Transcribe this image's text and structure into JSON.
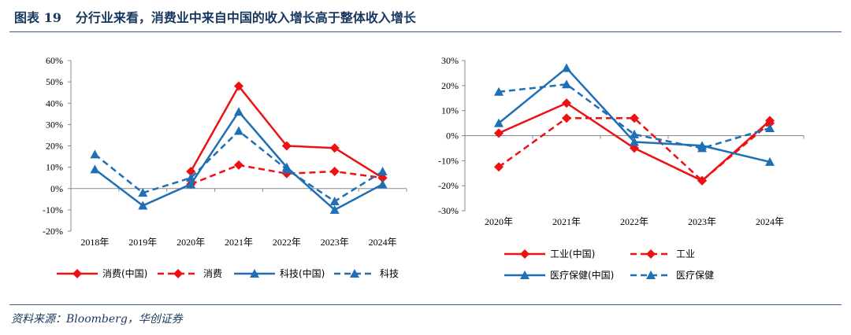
{
  "header": {
    "fig_label": "图表 19",
    "title": "分行业来看，消费业中来自中国的收入增长高于整体收入增长"
  },
  "source": "资料来源：Bloomberg，华创证券",
  "colors": {
    "red": "#ee1111",
    "blue": "#1f6fb5",
    "rule": "#3a5a8c",
    "title": "#17375e"
  },
  "chart_data": [
    {
      "type": "line",
      "categories": [
        "2018年",
        "2019年",
        "2020年",
        "2021年",
        "2022年",
        "2023年",
        "2024年"
      ],
      "ylim": [
        -0.2,
        0.6
      ],
      "yticks": [
        "60%",
        "50%",
        "40%",
        "30%",
        "20%",
        "10%",
        "0%",
        "-10%",
        "-20%"
      ],
      "legend_position": "bottom",
      "series": [
        {
          "name": "消费(中国)",
          "color": "#ee1111",
          "dash": false,
          "marker": "diamond",
          "values": [
            null,
            null,
            0.08,
            0.48,
            0.2,
            0.19,
            0.05
          ]
        },
        {
          "name": "消费",
          "color": "#ee1111",
          "dash": true,
          "marker": "diamond",
          "values": [
            null,
            null,
            0.02,
            0.11,
            0.07,
            0.08,
            0.05
          ]
        },
        {
          "name": "科技(中国)",
          "color": "#1f6fb5",
          "dash": false,
          "marker": "triangle",
          "values": [
            0.09,
            -0.08,
            0.02,
            0.36,
            0.1,
            -0.1,
            0.02
          ]
        },
        {
          "name": "科技",
          "color": "#1f6fb5",
          "dash": true,
          "marker": "triangle",
          "values": [
            0.16,
            -0.02,
            0.05,
            0.27,
            0.09,
            -0.06,
            0.08
          ]
        }
      ]
    },
    {
      "type": "line",
      "categories": [
        "2020年",
        "2021年",
        "2022年",
        "2023年",
        "2024年"
      ],
      "ylim": [
        -0.3,
        0.3
      ],
      "yticks": [
        "30%",
        "20%",
        "10%",
        "0%",
        "-10%",
        "-20%",
        "-30%"
      ],
      "legend_position": "bottom",
      "series": [
        {
          "name": "工业(中国)",
          "color": "#ee1111",
          "dash": false,
          "marker": "diamond",
          "values": [
            0.01,
            0.13,
            -0.05,
            -0.18,
            0.06
          ]
        },
        {
          "name": "工业",
          "color": "#ee1111",
          "dash": true,
          "marker": "diamond",
          "values": [
            -0.125,
            0.07,
            0.07,
            -0.18,
            0.05
          ]
        },
        {
          "name": "医疗保健(中国)",
          "color": "#1f6fb5",
          "dash": false,
          "marker": "triangle",
          "values": [
            0.05,
            0.27,
            -0.025,
            -0.04,
            -0.105
          ]
        },
        {
          "name": "医疗保健",
          "color": "#1f6fb5",
          "dash": true,
          "marker": "triangle",
          "values": [
            0.175,
            0.205,
            0.005,
            -0.05,
            0.03
          ]
        }
      ]
    }
  ]
}
